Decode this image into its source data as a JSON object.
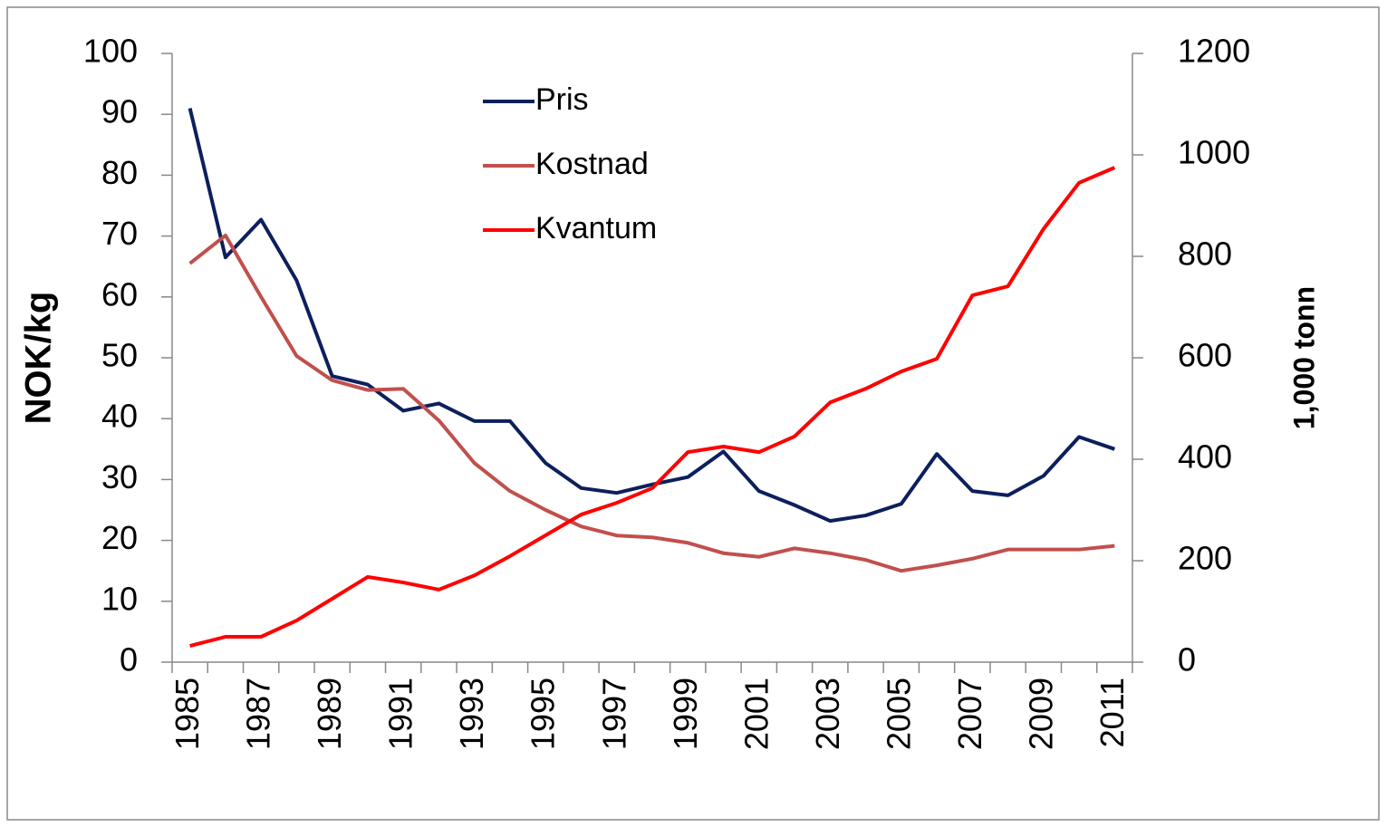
{
  "chart_data": {
    "type": "line",
    "categories": [
      "1985",
      null,
      "1987",
      null,
      "1989",
      null,
      "1991",
      null,
      "1993",
      null,
      "1995",
      null,
      "1997",
      null,
      "1999",
      null,
      "2001",
      null,
      "2003",
      null,
      "2005",
      null,
      "2007",
      null,
      "2009",
      null,
      "2011"
    ],
    "y_label": "NOK/kg",
    "y2_label": "1,000 tonn",
    "ylim": [
      0,
      100
    ],
    "yticks": [
      0,
      10,
      20,
      30,
      40,
      50,
      60,
      70,
      80,
      90,
      100
    ],
    "y2lim": [
      0,
      1200
    ],
    "y2ticks": [
      0,
      200,
      400,
      600,
      800,
      1000,
      1200
    ],
    "legend": "top",
    "series": [
      {
        "name": "Pris",
        "color": "#0d1f5c",
        "values": [
          91,
          66.5,
          72.7,
          62.7,
          47,
          45.6,
          41.3,
          42.5,
          39.6,
          39.6,
          32.7,
          28.6,
          27.8,
          29.2,
          30.4,
          34.6,
          28.1,
          25.8,
          23.2,
          24.1,
          26,
          34.2,
          28.1,
          27.4,
          30.6,
          37,
          35
        ]
      },
      {
        "name": "Kostnad",
        "color": "#c0504d",
        "values": [
          65.5,
          70.1,
          60,
          50.3,
          46.3,
          44.7,
          44.9,
          39.7,
          32.7,
          28.1,
          25,
          22.3,
          20.8,
          20.5,
          19.6,
          17.9,
          17.3,
          18.7,
          17.9,
          16.8,
          15,
          15.9,
          17,
          18.5,
          18.5,
          18.5,
          19.1
        ]
      },
      {
        "name": "Kvantum",
        "color": "#ff0000",
        "axis": "y2",
        "values": [
          32,
          50,
          50,
          82,
          125,
          168,
          157,
          143,
          171,
          209,
          250,
          291,
          314,
          343,
          414,
          425,
          414,
          445,
          512,
          539,
          573,
          598,
          723,
          741,
          854,
          945,
          975
        ]
      }
    ]
  }
}
